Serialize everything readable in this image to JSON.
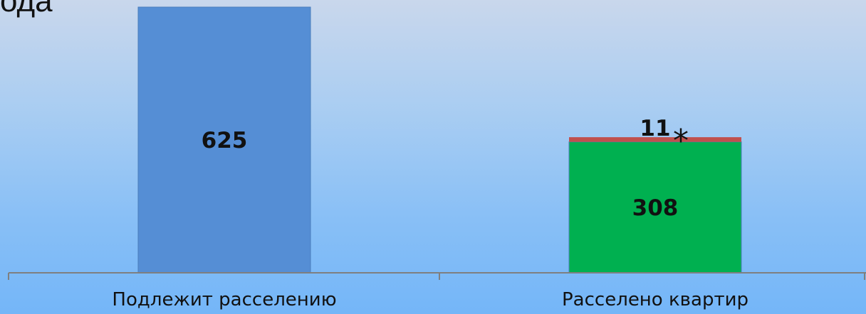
{
  "corner_text": "ода",
  "chart_data": {
    "type": "bar",
    "stacked": true,
    "categories": [
      "Подлежит расселению",
      "Расселено квартир"
    ],
    "series": [
      {
        "values": [
          625,
          308
        ],
        "colors": [
          "#558ed5",
          "#00b050"
        ]
      },
      {
        "values": [
          0,
          11
        ],
        "colors": [
          "#c0504d",
          "#c0504d"
        ]
      }
    ],
    "data_labels": [
      "625",
      "308",
      "11"
    ],
    "annotation": "*",
    "ylim": [
      0,
      625
    ],
    "grid": false,
    "legend": "none"
  }
}
